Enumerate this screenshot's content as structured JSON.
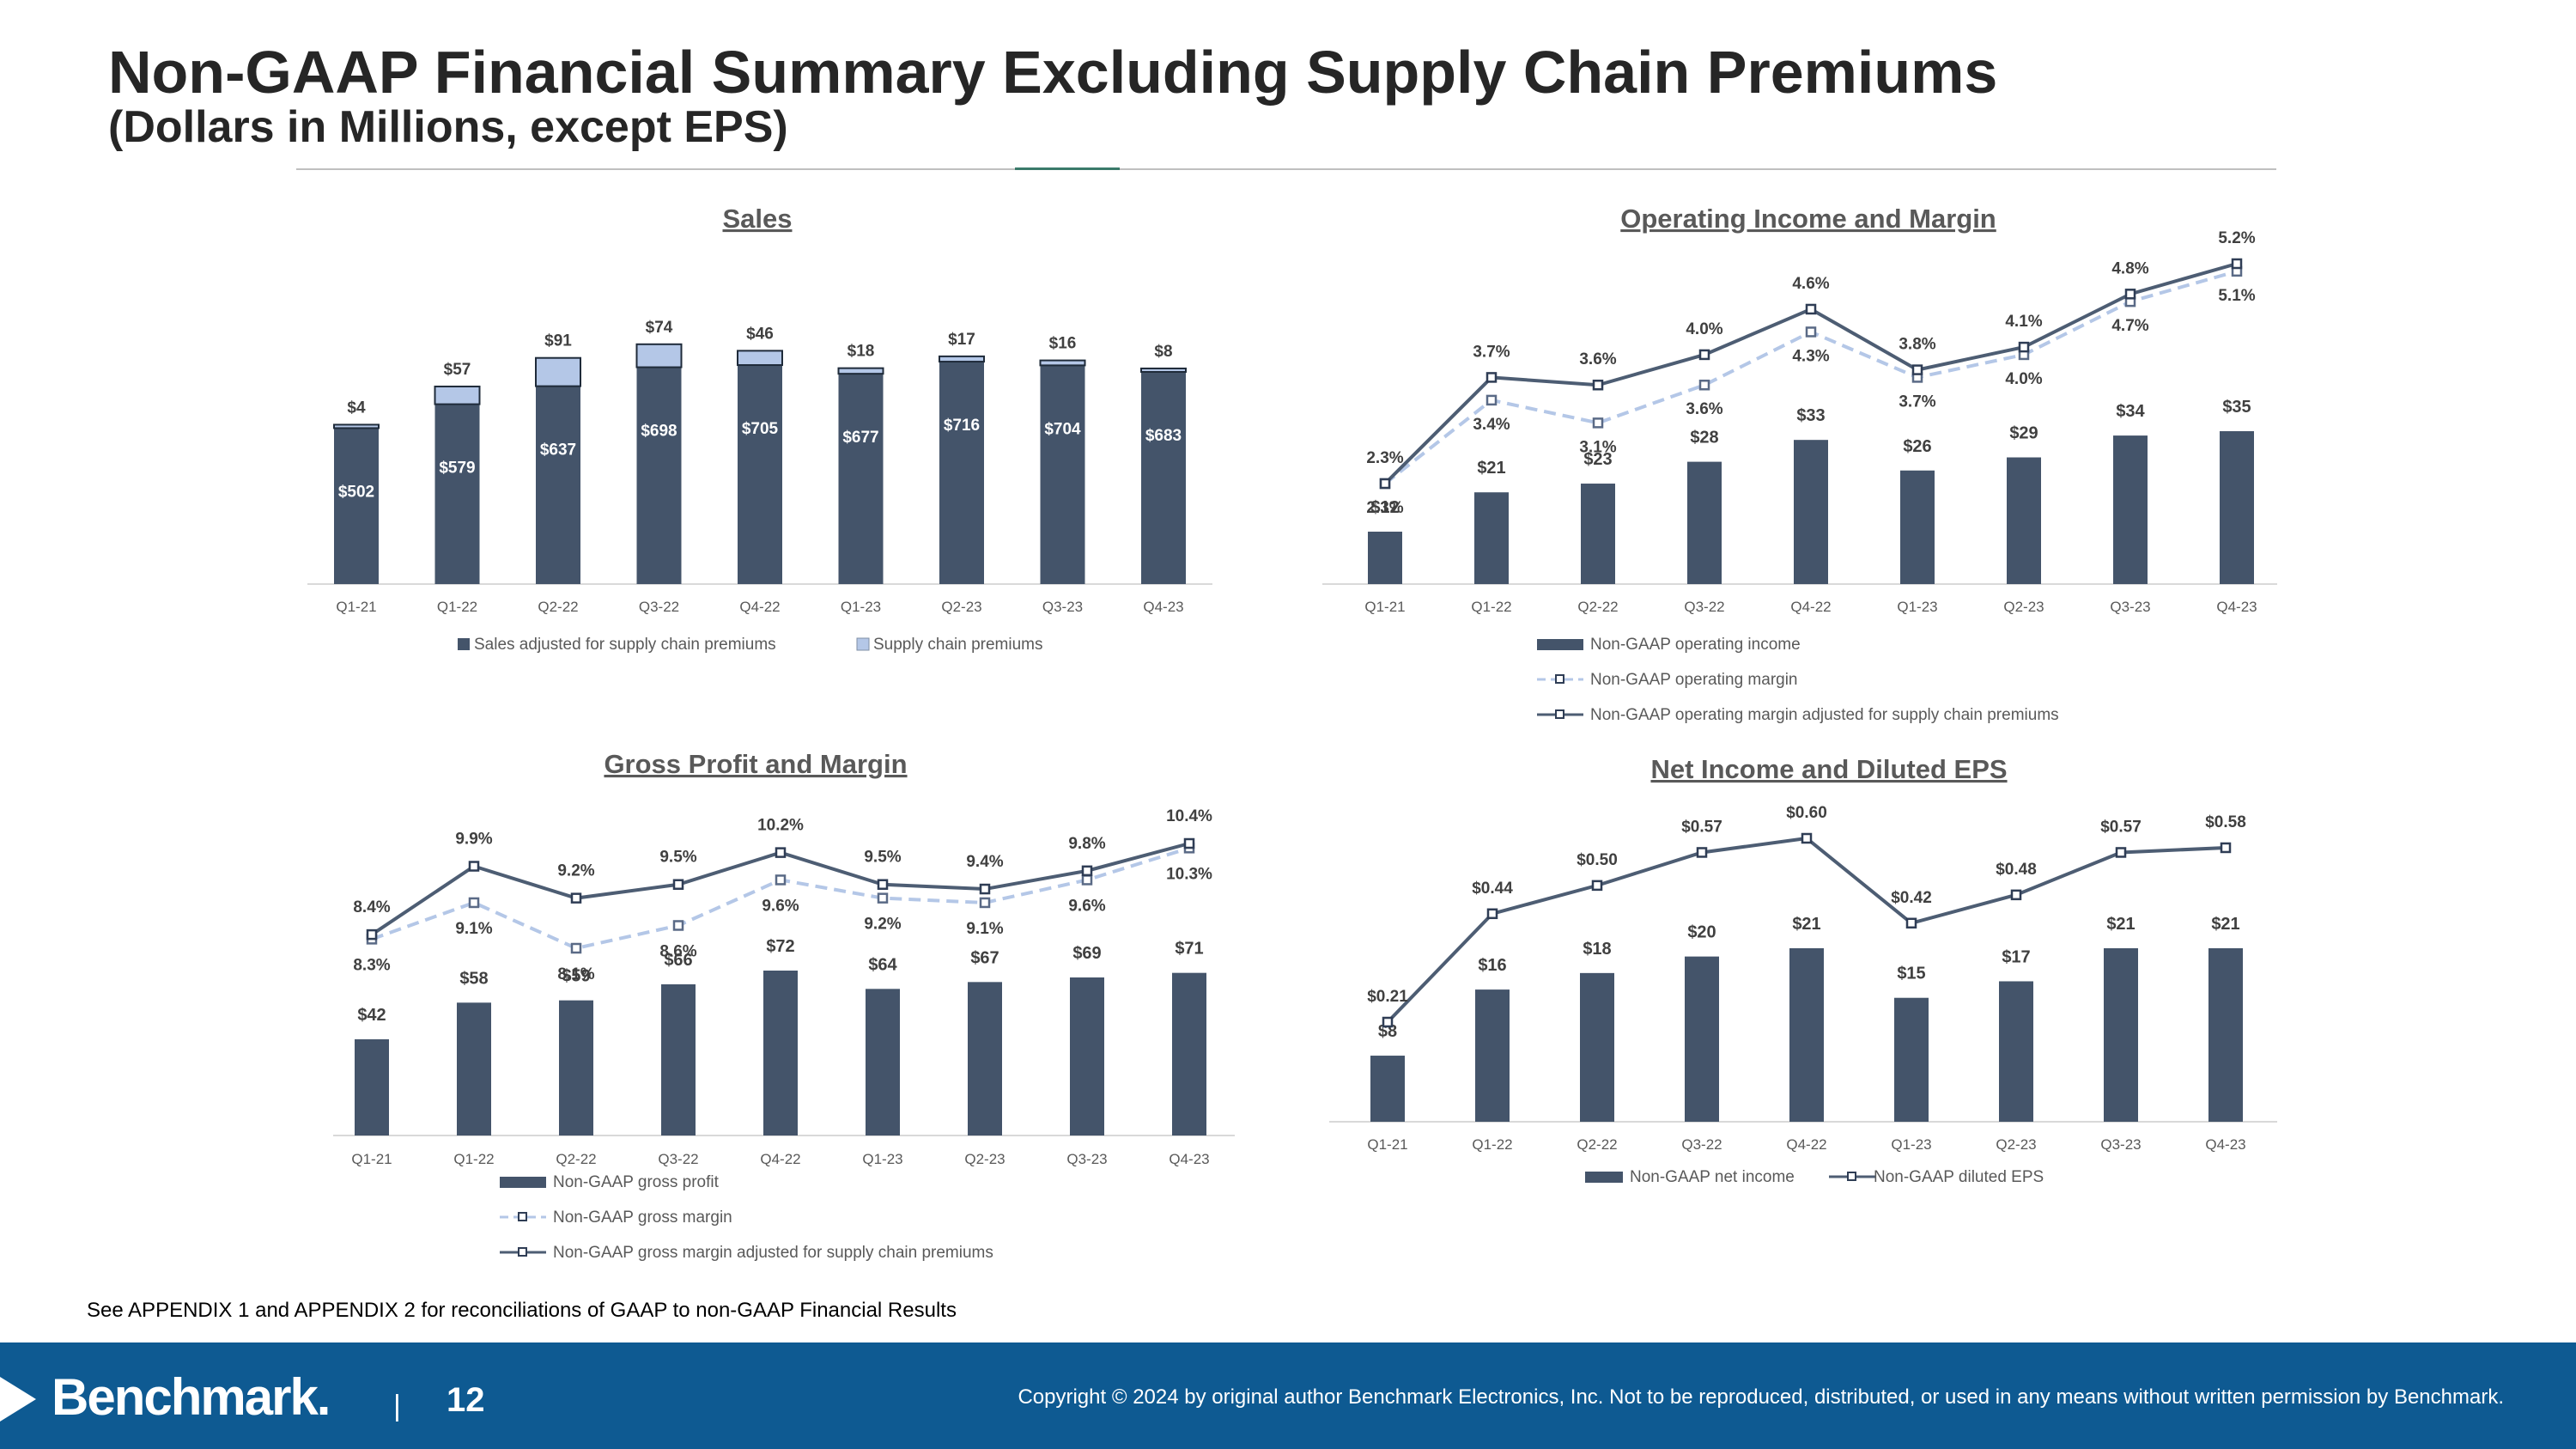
{
  "header": {
    "title": "Non-GAAP Financial Summary Excluding Supply Chain Premiums",
    "subtitle": "(Dollars in Millions, except EPS)"
  },
  "footnote": "See APPENDIX 1 and APPENDIX 2 for reconciliations of GAAP to non-GAAP Financial Results",
  "footer": {
    "logo_text": "Benchmark.",
    "separator": "|",
    "page_number": "12",
    "copyright": "Copyright © 2024 by original author Benchmark Electronics, Inc. Not to be reproduced, distributed, or used in any means without written permission by Benchmark."
  },
  "colors": {
    "bar": "#44546a",
    "premium": "#b4c7e7",
    "line_dark": "#4d5d73",
    "line_dashed": "#b4c7e7",
    "footer": "#0e5a92"
  },
  "chart_data": [
    {
      "id": "sales",
      "type": "bar",
      "title": "Sales",
      "categories": [
        "Q1-21",
        "Q1-22",
        "Q2-22",
        "Q3-22",
        "Q4-22",
        "Q1-23",
        "Q2-23",
        "Q3-23",
        "Q4-23"
      ],
      "series": [
        {
          "name": "Sales adjusted for supply chain premiums",
          "values": [
            502,
            579,
            637,
            698,
            705,
            677,
            716,
            704,
            683
          ],
          "labels": [
            "$502",
            "$579",
            "$637",
            "$698",
            "$705",
            "$677",
            "$716",
            "$704",
            "$683"
          ]
        },
        {
          "name": "Supply chain premiums",
          "values": [
            4,
            57,
            91,
            74,
            46,
            18,
            17,
            16,
            8
          ],
          "labels": [
            "$4",
            "$57",
            "$91",
            "$74",
            "$46",
            "$18",
            "$17",
            "$16",
            "$8"
          ]
        }
      ],
      "stacked": true,
      "ylim": [
        0,
        900
      ]
    },
    {
      "id": "operating",
      "type": "bar",
      "title": "Operating Income and Margin",
      "categories": [
        "Q1-21",
        "Q1-22",
        "Q2-22",
        "Q3-22",
        "Q4-22",
        "Q1-23",
        "Q2-23",
        "Q3-23",
        "Q4-23"
      ],
      "series": [
        {
          "name": "Non-GAAP operating income",
          "values": [
            12,
            21,
            23,
            28,
            33,
            26,
            29,
            34,
            35
          ],
          "labels": [
            "$12",
            "$21",
            "$23",
            "$28",
            "$33",
            "$26",
            "$29",
            "$34",
            "$35"
          ]
        },
        {
          "name": "Non-GAAP operating margin",
          "type": "line",
          "dashed": true,
          "values": [
            2.3,
            3.4,
            3.1,
            3.6,
            4.3,
            3.7,
            4.0,
            4.7,
            5.1
          ],
          "labels": [
            "2.3%",
            "3.4%",
            "3.1%",
            "3.6%",
            "4.3%",
            "3.7%",
            "4.0%",
            "4.7%",
            "5.1%"
          ]
        },
        {
          "name": "Non-GAAP operating margin adjusted for supply chain premiums",
          "type": "line",
          "values": [
            2.3,
            3.7,
            3.6,
            4.0,
            4.6,
            3.8,
            4.1,
            4.8,
            5.2
          ],
          "labels": [
            "2.3%",
            "3.7%",
            "3.6%",
            "4.0%",
            "4.6%",
            "3.8%",
            "4.1%",
            "4.8%",
            "5.2%"
          ]
        }
      ]
    },
    {
      "id": "gross",
      "type": "bar",
      "title": "Gross Profit and Margin",
      "categories": [
        "Q1-21",
        "Q1-22",
        "Q2-22",
        "Q3-22",
        "Q4-22",
        "Q1-23",
        "Q2-23",
        "Q3-23",
        "Q4-23"
      ],
      "series": [
        {
          "name": "Non-GAAP gross profit",
          "values": [
            42,
            58,
            59,
            66,
            72,
            64,
            67,
            69,
            71
          ],
          "labels": [
            "$42",
            "$58",
            "$59",
            "$66",
            "$72",
            "$64",
            "$67",
            "$69",
            "$71"
          ]
        },
        {
          "name": "Non-GAAP gross margin",
          "type": "line",
          "dashed": true,
          "values": [
            8.3,
            9.1,
            8.1,
            8.6,
            9.6,
            9.2,
            9.1,
            9.6,
            10.3
          ],
          "labels": [
            "8.3%",
            "9.1%",
            "8.1%",
            "8.6%",
            "9.6%",
            "9.2%",
            "9.1%",
            "9.6%",
            "10.3%"
          ]
        },
        {
          "name": "Non-GAAP gross margin adjusted for supply chain premiums",
          "type": "line",
          "values": [
            8.4,
            9.9,
            9.2,
            9.5,
            10.2,
            9.5,
            9.4,
            9.8,
            10.4
          ],
          "labels": [
            "8.4%",
            "9.9%",
            "9.2%",
            "9.5%",
            "10.2%",
            "9.5%",
            "9.4%",
            "9.8%",
            "10.4%"
          ]
        }
      ]
    },
    {
      "id": "net",
      "type": "bar",
      "title": "Net Income and Diluted EPS",
      "categories": [
        "Q1-21",
        "Q1-22",
        "Q2-22",
        "Q3-22",
        "Q4-22",
        "Q1-23",
        "Q2-23",
        "Q3-23",
        "Q4-23"
      ],
      "series": [
        {
          "name": "Non-GAAP net income",
          "values": [
            8,
            16,
            18,
            20,
            21,
            15,
            17,
            21,
            21
          ],
          "labels": [
            "$8",
            "$16",
            "$18",
            "$20",
            "$21",
            "$15",
            "$17",
            "$21",
            "$21"
          ]
        },
        {
          "name": "Non-GAAP diluted EPS",
          "type": "line",
          "values": [
            0.21,
            0.44,
            0.5,
            0.57,
            0.6,
            0.42,
            0.48,
            0.57,
            0.58
          ],
          "labels": [
            "$0.21",
            "$0.44",
            "$0.50",
            "$0.57",
            "$0.60",
            "$0.42",
            "$0.48",
            "$0.57",
            "$0.58"
          ]
        }
      ]
    }
  ]
}
